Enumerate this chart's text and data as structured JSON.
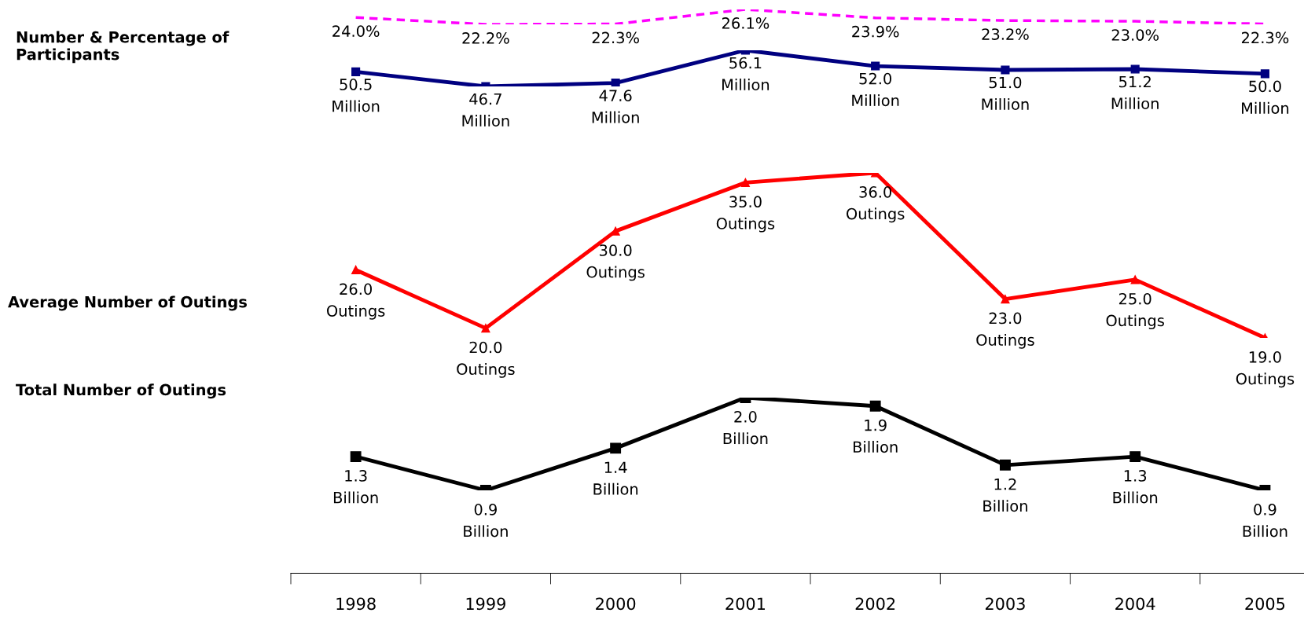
{
  "chart_data": [
    {
      "type": "line",
      "categories": [
        "1998",
        "1999",
        "2000",
        "2001",
        "2002",
        "2003",
        "2004",
        "2005"
      ],
      "tick_labels": false,
      "grid": false,
      "legend": false,
      "series": [
        {
          "color": "#ff00ff",
          "marker": "none",
          "line_style": "dashed",
          "values": [
            24.0,
            22.2,
            22.3,
            26.1,
            23.9,
            23.2,
            23.0,
            22.3
          ],
          "value_labels": [
            "24.0%",
            "22.2%",
            "22.3%",
            "26.1%",
            "23.9%",
            "23.2%",
            "23.0%",
            "22.3%"
          ]
        }
      ]
    },
    {
      "type": "line",
      "ylabel": "Number & Percentage of\nParticipants",
      "categories": [
        "1998",
        "1999",
        "2000",
        "2001",
        "2002",
        "2003",
        "2004",
        "2005"
      ],
      "tick_labels": false,
      "grid": false,
      "legend": false,
      "series": [
        {
          "color": "#000080",
          "marker": "square",
          "line_style": "solid",
          "values": [
            50.5,
            46.7,
            47.6,
            56.1,
            52.0,
            51.0,
            51.2,
            50.0
          ],
          "value_labels": [
            "50.5\nMillion",
            "46.7\nMillion",
            "47.6\nMillion",
            "56.1\nMillion",
            "52.0\nMillion",
            "51.0\nMillion",
            "51.2\nMillion",
            "50.0\nMillion"
          ]
        }
      ]
    },
    {
      "type": "line",
      "ylabel": "Average Number of Outings",
      "categories": [
        "1998",
        "1999",
        "2000",
        "2001",
        "2002",
        "2003",
        "2004",
        "2005"
      ],
      "tick_labels": false,
      "grid": false,
      "legend": false,
      "series": [
        {
          "color": "#ff0000",
          "marker": "triangle",
          "line_style": "solid",
          "values": [
            26.0,
            20.0,
            30.0,
            35.0,
            36.0,
            23.0,
            25.0,
            19.0
          ],
          "value_labels": [
            "26.0\nOutings",
            "20.0\nOutings",
            "30.0\nOutings",
            "35.0\nOutings",
            "36.0\nOutings",
            "23.0\nOutings",
            "25.0\nOutings",
            "19.0\nOutings"
          ]
        }
      ]
    },
    {
      "type": "line",
      "ylabel": "Total Number of Outings",
      "categories": [
        "1998",
        "1999",
        "2000",
        "2001",
        "2002",
        "2003",
        "2004",
        "2005"
      ],
      "tick_labels": "x",
      "grid": false,
      "legend": false,
      "series": [
        {
          "color": "#000000",
          "marker": "square",
          "line_style": "solid",
          "values": [
            1.3,
            0.9,
            1.4,
            2.0,
            1.9,
            1.2,
            1.3,
            0.9
          ],
          "value_labels": [
            "1.3\nBillion",
            "0.9\nBillion",
            "1.4\nBillion",
            "2.0\nBillion",
            "1.9\nBillion",
            "1.2\nBillion",
            "1.3\nBillion",
            "0.9\nBillion"
          ]
        }
      ]
    }
  ]
}
